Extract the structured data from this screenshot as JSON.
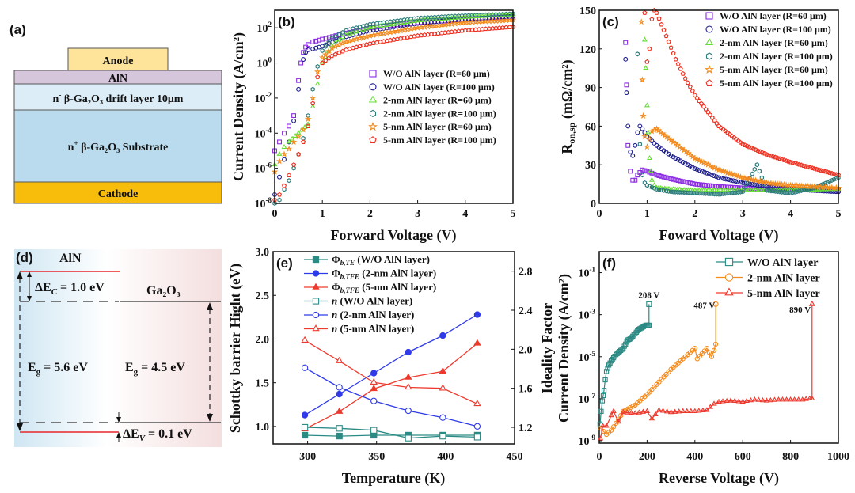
{
  "panels": {
    "a": {
      "label": "(a)",
      "layers": [
        {
          "name": "anode",
          "text": "Anode",
          "color": "#fde49a"
        },
        {
          "name": "aln",
          "text": "AlN",
          "color": "#d6c6dc"
        },
        {
          "name": "drift",
          "text_pre": "n",
          "text_sup": "-",
          "text_main": " β-Ga₂O₃ drift layer 10μm",
          "color": "#dcedf7"
        },
        {
          "name": "substrate",
          "text_pre": "n",
          "text_sup": "+",
          "text_main": " β-Ga₂O₃ Substrate",
          "color": "#b9dbed"
        },
        {
          "name": "cathode",
          "text": "Cathode",
          "color": "#f7bd0a"
        }
      ]
    },
    "d": {
      "label": "(d)",
      "aln_label": "AlN",
      "ga2o3_label": "Ga₂O₃",
      "delta_ec": "ΔE",
      "delta_ec_sub": "C",
      "delta_ec_val": " = 1.0 eV",
      "delta_ev": "ΔE",
      "delta_ev_sub": "V",
      "delta_ev_val": " = 0.1 eV",
      "eg_aln": "E",
      "eg_aln_sub": "g",
      "eg_aln_val": " = 5.6 eV",
      "eg_ga": "E",
      "eg_ga_sub": "g",
      "eg_ga_val": " = 4.5 eV",
      "band_color": "#e8262a"
    }
  },
  "chart_data": [
    {
      "id": "b",
      "panel_label": "(b)",
      "type": "scatter",
      "xlabel": "Forward Voltage (V)",
      "ylabel": "Current Density (A/cm²)",
      "xlim": [
        0,
        5
      ],
      "ylim_log10": [
        -8,
        3
      ],
      "yscale": "log",
      "x_ticks": [
        "0",
        "1",
        "2",
        "3",
        "4",
        "5"
      ],
      "y_ticks": [
        {
          "base": "10",
          "exp": "2"
        },
        {
          "base": "10",
          "exp": "0"
        },
        {
          "base": "10",
          "exp": "-2"
        },
        {
          "base": "10",
          "exp": "-4"
        },
        {
          "base": "10",
          "exp": "-6"
        },
        {
          "base": "10",
          "exp": "-8"
        }
      ],
      "legend_position": "center-right",
      "series": [
        {
          "name": "W/O AlN layer (R=60 μm)",
          "marker": "square",
          "color": "#8a2be2",
          "x": [
            0,
            0.1,
            0.2,
            0.3,
            0.4,
            0.5,
            0.55,
            0.6,
            0.65,
            0.7,
            0.8,
            1.0,
            1.5,
            2,
            3,
            4,
            5
          ],
          "log_y": [
            -5.0,
            -4.5,
            -4.0,
            -3.6,
            -3.0,
            -1.0,
            0.0,
            0.6,
            0.9,
            1.05,
            1.2,
            1.35,
            1.7,
            2.0,
            2.3,
            2.45,
            2.6
          ]
        },
        {
          "name": "W/O AlN layer (R=100 μm)",
          "marker": "circle",
          "color": "#1a1a8c",
          "x": [
            0,
            0.1,
            0.2,
            0.3,
            0.4,
            0.5,
            0.6,
            0.65,
            0.7,
            0.8,
            1.0,
            1.5,
            2,
            3,
            4,
            5
          ],
          "log_y": [
            -7.5,
            -6.5,
            -5.5,
            -4.5,
            -3.3,
            -1.5,
            0.2,
            0.6,
            0.75,
            0.8,
            0.95,
            1.5,
            1.85,
            2.25,
            2.5,
            2.65
          ]
        },
        {
          "name": "2-nm AlN layer (R=60 μm)",
          "marker": "triangle",
          "color": "#66dd33",
          "x": [
            0,
            0.1,
            0.2,
            0.3,
            0.5,
            0.7,
            0.8,
            0.9,
            1.0,
            1.2,
            1.5,
            2,
            3,
            4,
            5
          ],
          "log_y": [
            -5.8,
            -5.2,
            -4.8,
            -4.5,
            -4.0,
            -3.5,
            -2.5,
            -1.2,
            0.0,
            1.0,
            1.6,
            2.0,
            2.4,
            2.6,
            2.75
          ]
        },
        {
          "name": "2-nm AlN layer (R=100 μm)",
          "marker": "hexagon",
          "color": "#2b7b7b",
          "x": [
            0,
            0.1,
            0.2,
            0.3,
            0.4,
            0.5,
            0.6,
            0.7,
            0.8,
            0.9,
            1.0,
            1.2,
            1.5,
            2,
            3,
            4,
            5
          ],
          "log_y": [
            -8.0,
            -7.8,
            -7.2,
            -6.7,
            -6.0,
            -5.2,
            -4.3,
            -3.0,
            -1.5,
            -0.2,
            0.7,
            1.4,
            1.85,
            2.2,
            2.55,
            2.7,
            2.8
          ]
        },
        {
          "name": "5-nm AlN layer (R=60 μm)",
          "marker": "star",
          "color": "#f38b1e",
          "x": [
            0,
            0.1,
            0.2,
            0.3,
            0.4,
            0.5,
            0.6,
            0.7,
            0.8,
            0.9,
            1.0,
            1.2,
            1.5,
            2,
            3,
            4,
            5
          ],
          "log_y": [
            -6.2,
            -5.6,
            -5.2,
            -4.9,
            -4.5,
            -4.2,
            -3.8,
            -3.2,
            -2.0,
            -0.5,
            0.3,
            0.85,
            1.2,
            1.55,
            2.0,
            2.3,
            2.45
          ]
        },
        {
          "name": "5-nm AlN layer (R=100 μm)",
          "marker": "pentagon",
          "color": "#ee3020",
          "x": [
            0,
            0.1,
            0.2,
            0.3,
            0.4,
            0.5,
            0.6,
            0.7,
            0.8,
            0.9,
            1.0,
            1.2,
            1.5,
            2,
            3,
            4,
            5
          ],
          "log_y": [
            -7.8,
            -7.5,
            -7.0,
            -6.4,
            -5.8,
            -5.2,
            -4.5,
            -3.6,
            -2.3,
            -0.8,
            0.0,
            0.4,
            0.75,
            1.1,
            1.55,
            1.85,
            2.05
          ]
        }
      ]
    },
    {
      "id": "c",
      "panel_label": "(c)",
      "type": "scatter",
      "xlabel": "Foward Voltage (V)",
      "ylabel": "R",
      "ylabel_sub": "on,sp",
      "ylabel_tail": " (mΩ/cm²)",
      "xlim": [
        0,
        5
      ],
      "ylim": [
        0,
        150
      ],
      "x_ticks": [
        "0",
        "1",
        "2",
        "3",
        "4",
        "5"
      ],
      "y_ticks": [
        "0",
        "30",
        "60",
        "90",
        "120",
        "150"
      ],
      "legend_position": "top-right",
      "series": [
        {
          "name": "W/O AlN layer (R=60 μm)",
          "marker": "square",
          "color": "#8a2be2",
          "x": [
            0.55,
            0.57,
            0.6,
            0.65,
            0.7,
            0.75,
            0.8,
            0.9,
            1.0,
            1.2,
            1.5,
            2,
            2.5,
            3,
            3.5,
            4,
            5
          ],
          "y": [
            125,
            92,
            45,
            25,
            18,
            18,
            22,
            26,
            25,
            22,
            19,
            15,
            13,
            12,
            11,
            11,
            10
          ]
        },
        {
          "name": "W/O AlN layer (R=100 μm)",
          "marker": "circle",
          "color": "#1a1a8c",
          "x": [
            0.55,
            0.57,
            0.6,
            0.65,
            0.7,
            0.75,
            0.8,
            0.85,
            0.9,
            1.0,
            1.2,
            1.5,
            2,
            2.5,
            3,
            3.5,
            4,
            5
          ],
          "y": [
            112,
            86,
            60,
            40,
            37,
            45,
            55,
            60,
            58,
            52,
            45,
            37,
            27,
            20,
            16,
            13,
            11,
            9
          ]
        },
        {
          "name": "2-nm AlN layer (R=60 μm)",
          "marker": "triangle",
          "color": "#66dd33",
          "x": [
            0.95,
            0.97,
            1.0,
            1.02,
            1.05,
            1.08,
            1.1,
            1.15,
            1.2,
            1.5,
            2,
            2.5,
            3,
            4,
            5
          ],
          "y": [
            127,
            105,
            76,
            55,
            35,
            25,
            18,
            14,
            12,
            11,
            10,
            10,
            10,
            10,
            11
          ]
        },
        {
          "name": "2-nm AlN layer (R=100 μm)",
          "marker": "hexagon",
          "color": "#2b7b7b",
          "x": [
            0.8,
            0.85,
            0.9,
            0.95,
            1.0,
            1.2,
            1.5,
            2,
            2.5,
            3,
            3.3,
            3.5,
            4,
            4.5,
            5
          ],
          "y": [
            116,
            46,
            22,
            16,
            14,
            11,
            9,
            8,
            7,
            9,
            30,
            10,
            8,
            12,
            20
          ]
        },
        {
          "name": "5-nm AlN layer (R=60 μm)",
          "marker": "star",
          "color": "#f38b1e",
          "x": [
            0.88,
            0.9,
            0.92,
            0.95,
            1.0,
            1.05,
            1.1,
            1.2,
            1.5,
            2,
            2.5,
            3,
            3.5,
            4,
            5
          ],
          "y": [
            141,
            96,
            68,
            52,
            44,
            50,
            56,
            58,
            49,
            35,
            26,
            20,
            16,
            14,
            12
          ]
        },
        {
          "name": "5-nm AlN layer (R=100 μm)",
          "marker": "pentagon",
          "color": "#ee3020",
          "x": [
            0.95,
            1.0,
            1.05,
            1.1,
            1.15,
            1.2,
            1.4,
            1.6,
            1.8,
            2,
            2.5,
            3,
            3.5,
            4,
            4.5,
            5
          ],
          "y": [
            148,
            110,
            120,
            143,
            150,
            148,
            130,
            112,
            97,
            84,
            60,
            46,
            38,
            32,
            27,
            22
          ]
        }
      ]
    },
    {
      "id": "e",
      "panel_label": "(e)",
      "type": "line",
      "xlabel": "Temperature (K)",
      "ylabel": "Schottky barrier Hight (eV)",
      "ylabel_right": "Ideality Factor",
      "xlim": [
        275,
        450
      ],
      "ylim": [
        0.8,
        3.0
      ],
      "ylim_right": [
        1.03,
        3.0
      ],
      "x_ticks": [
        "300",
        "350",
        "400",
        "450"
      ],
      "y_ticks": [
        "1.0",
        "1.5",
        "2.0",
        "2.5",
        "3.0"
      ],
      "y_ticks_right": [
        "1.2",
        "1.6",
        "2.0",
        "2.4",
        "2.8"
      ],
      "legend_position": "top-left",
      "series": [
        {
          "name": "Φ",
          "name_sub": "b,TE",
          "name_tail": " (W/O AlN layer)",
          "axis": "left",
          "marker": "square-filled",
          "color": "#2b8a84",
          "x": [
            298,
            323,
            348,
            373,
            398,
            423
          ],
          "y": [
            0.9,
            0.89,
            0.9,
            0.9,
            0.9,
            0.9
          ]
        },
        {
          "name": "Φ",
          "name_sub": "b,TFE",
          "name_tail": " (2-nm AlN layer)",
          "axis": "left",
          "marker": "circle-filled",
          "color": "#2f3ae8",
          "x": [
            298,
            323,
            348,
            373,
            398,
            423
          ],
          "y": [
            1.13,
            1.37,
            1.61,
            1.85,
            2.04,
            2.28
          ]
        },
        {
          "name": "Φ",
          "name_sub": "b,TFE",
          "name_tail": " (5-nm AlN layer)",
          "axis": "left",
          "marker": "triangle-filled",
          "color": "#ee3a2e",
          "x": [
            298,
            323,
            348,
            373,
            398,
            423
          ],
          "y": [
            0.97,
            1.17,
            1.43,
            1.56,
            1.63,
            1.95
          ]
        },
        {
          "name": "n",
          "name_sub": "",
          "name_tail": " (W/O AlN layer)",
          "axis": "right",
          "marker": "square-open",
          "color": "#2b8a84",
          "x": [
            298,
            323,
            348,
            373,
            398,
            423
          ],
          "y": [
            1.2,
            1.19,
            1.17,
            1.09,
            1.11,
            1.1
          ]
        },
        {
          "name": "n",
          "name_sub": "",
          "name_tail": " (2-nm AlN layer)",
          "axis": "right",
          "marker": "circle-open",
          "color": "#2f3ae8",
          "x": [
            298,
            323,
            348,
            373,
            398,
            423
          ],
          "y": [
            1.81,
            1.61,
            1.47,
            1.37,
            1.3,
            1.21
          ]
        },
        {
          "name": "n",
          "name_sub": "",
          "name_tail": " (5-nm AlN layer)",
          "axis": "right",
          "marker": "triangle-open",
          "color": "#ee3a2e",
          "x": [
            298,
            323,
            348,
            373,
            398,
            423
          ],
          "y": [
            2.09,
            1.88,
            1.66,
            1.61,
            1.6,
            1.44
          ]
        }
      ]
    },
    {
      "id": "f",
      "panel_label": "(f)",
      "type": "line",
      "xlabel": "Reverse Voltage (V)",
      "ylabel": "Current Density (A/cm²)",
      "xlim": [
        0,
        1000
      ],
      "ylim_log10": [
        -9,
        0
      ],
      "yscale": "log",
      "x_ticks": [
        "0",
        "200",
        "400",
        "600",
        "800",
        "1000"
      ],
      "y_ticks": [
        {
          "base": "10",
          "exp": "-1"
        },
        {
          "base": "10",
          "exp": "-3"
        },
        {
          "base": "10",
          "exp": "-5"
        },
        {
          "base": "10",
          "exp": "-7"
        },
        {
          "base": "10",
          "exp": "-9"
        }
      ],
      "legend_position": "top-right",
      "annotations": [
        {
          "text": "208 V",
          "x": 208,
          "log_y": -2.2
        },
        {
          "text": "487 V",
          "x": 440,
          "log_y": -2.7
        },
        {
          "text": "890 V",
          "x": 840,
          "log_y": -2.9
        }
      ],
      "series": [
        {
          "name": "W/O AlN layer",
          "marker": "square",
          "color": "#2b8a84",
          "x": [
            3,
            8,
            13,
            20,
            25,
            30,
            40,
            50,
            60,
            70,
            80,
            90,
            100,
            110,
            120,
            130,
            150,
            165,
            180,
            195,
            208,
            208
          ],
          "log_y": [
            -8.2,
            -7.6,
            -7.1,
            -6.6,
            -6.1,
            -5.7,
            -5.4,
            -5.2,
            -5.05,
            -4.9,
            -4.8,
            -4.7,
            -4.6,
            -4.4,
            -4.2,
            -4.15,
            -3.9,
            -3.7,
            -3.6,
            -3.5,
            -3.5,
            -2.5
          ]
        },
        {
          "name": "2-nm AlN layer",
          "marker": "circle",
          "color": "#f38b1e",
          "x": [
            5,
            30,
            50,
            80,
            100,
            150,
            200,
            250,
            300,
            350,
            400,
            410,
            450,
            470,
            480,
            487,
            487
          ],
          "log_y": [
            -8.4,
            -8.7,
            -8.5,
            -8.0,
            -7.6,
            -7.3,
            -6.8,
            -6.2,
            -5.6,
            -5.1,
            -4.6,
            -5.1,
            -4.6,
            -5.0,
            -4.7,
            -4.4,
            -2.5
          ]
        },
        {
          "name": "5-nm AlN layer",
          "marker": "triangle",
          "color": "#ee3a2e",
          "x": [
            5,
            15,
            30,
            50,
            60,
            80,
            100,
            150,
            200,
            220,
            250,
            300,
            350,
            400,
            450,
            480,
            500,
            550,
            600,
            650,
            700,
            750,
            800,
            850,
            880,
            890,
            890
          ],
          "log_y": [
            -8.9,
            -8.3,
            -8.3,
            -7.8,
            -7.6,
            -8.1,
            -7.65,
            -7.7,
            -7.6,
            -7.95,
            -7.55,
            -7.65,
            -7.6,
            -7.6,
            -7.55,
            -7.25,
            -7.15,
            -7.1,
            -7.15,
            -7.05,
            -7.1,
            -7.05,
            -7.05,
            -7.05,
            -7.0,
            -7.0,
            -2.5
          ]
        }
      ]
    }
  ]
}
